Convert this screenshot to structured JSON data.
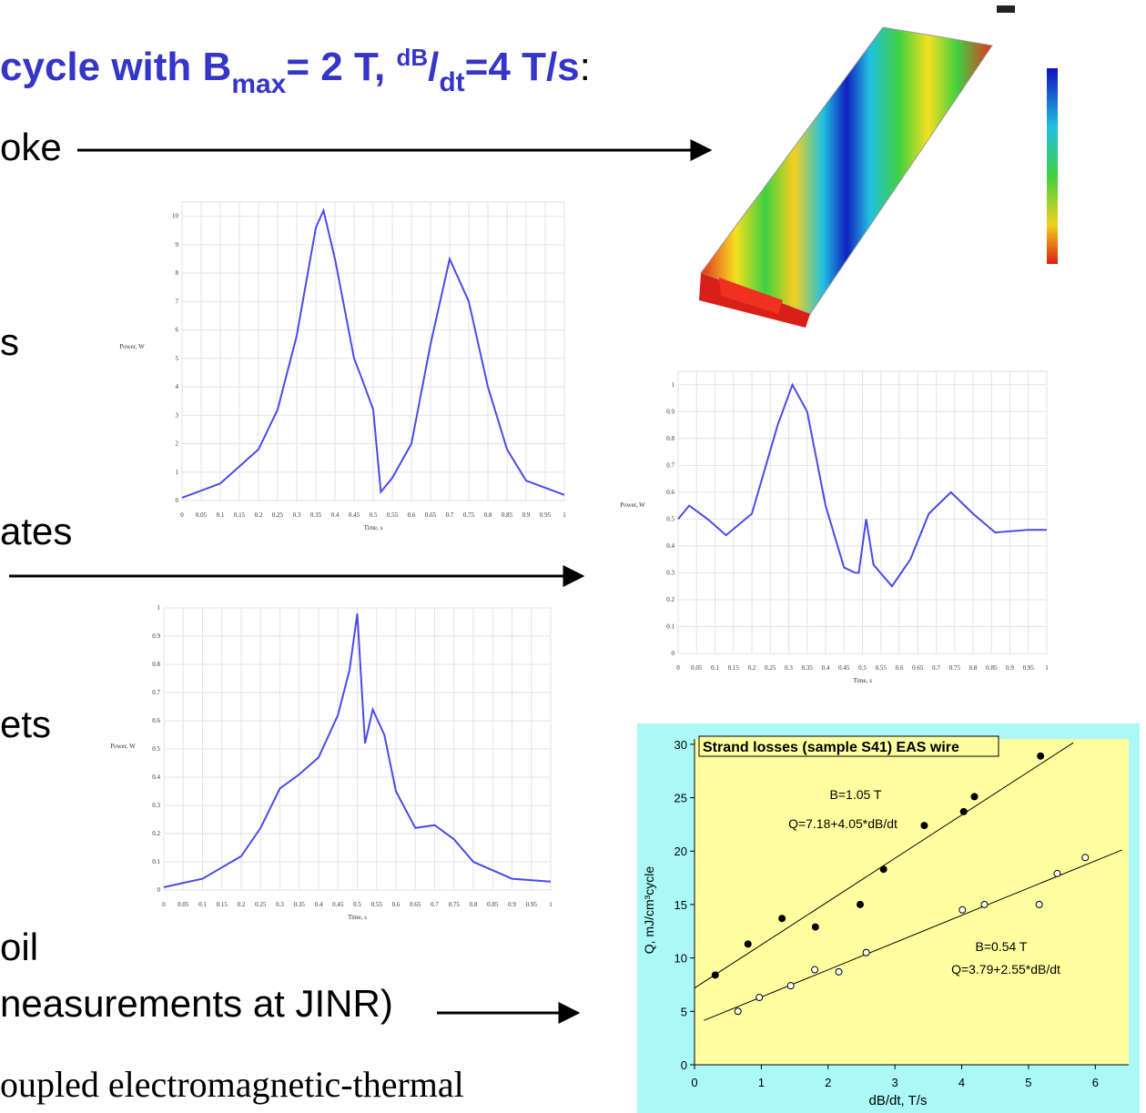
{
  "slide": {
    "title": {
      "main": "cycle with B",
      "sub1": "max",
      "mid": "= 2 T, ",
      "sup": "dB",
      "slash": "/",
      "sub2": "dt",
      "end": "=4 T/s",
      "colon": ":"
    },
    "bullets": [
      "oke",
      "s",
      "ates",
      "ets",
      "oil",
      "neasurements at JINR)"
    ],
    "footer": "oupled electromagnetic-thermal"
  },
  "chart_data": [
    {
      "type": "line",
      "y_label": "Power, W",
      "x_label": "Time, s",
      "color": "#4a4ae8",
      "grid": true,
      "x": [
        0,
        0.1,
        0.2,
        0.25,
        0.3,
        0.35,
        0.37,
        0.4,
        0.45,
        0.47,
        0.5,
        0.52,
        0.55,
        0.6,
        0.65,
        0.7,
        0.75,
        0.8,
        0.85,
        0.9,
        1.0
      ],
      "values": [
        0.1,
        0.6,
        1.8,
        3.2,
        5.8,
        9.6,
        10.2,
        8.5,
        5,
        4.3,
        3.2,
        0.3,
        0.8,
        2,
        5.5,
        8.5,
        7,
        4,
        1.8,
        0.7,
        0.2
      ],
      "xlim": [
        0,
        1
      ],
      "ylim": [
        0,
        10.5
      ],
      "xticks": [
        0,
        0.05,
        0.1,
        0.15,
        0.2,
        0.25,
        0.3,
        0.35,
        0.4,
        0.45,
        0.5,
        0.55,
        0.6,
        0.65,
        0.7,
        0.75,
        0.8,
        0.85,
        0.9,
        0.95,
        1
      ],
      "yticks": [
        0,
        1,
        2,
        3,
        4,
        5,
        6,
        7,
        8,
        9,
        10
      ]
    },
    {
      "type": "line",
      "y_label": "Power, W",
      "x_label": "Time, s",
      "color": "#4a4ae8",
      "grid": true,
      "x": [
        0,
        0.03,
        0.08,
        0.13,
        0.2,
        0.27,
        0.31,
        0.35,
        0.4,
        0.45,
        0.48,
        0.49,
        0.51,
        0.53,
        0.58,
        0.63,
        0.68,
        0.74,
        0.8,
        0.86,
        0.95,
        1.0
      ],
      "values": [
        0.5,
        0.55,
        0.5,
        0.44,
        0.52,
        0.85,
        1.0,
        0.9,
        0.55,
        0.32,
        0.3,
        0.3,
        0.5,
        0.33,
        0.25,
        0.35,
        0.52,
        0.6,
        0.52,
        0.45,
        0.46,
        0.46
      ],
      "xlim": [
        0,
        1
      ],
      "ylim": [
        0,
        1.05
      ],
      "xticks": [
        0,
        0.05,
        0.1,
        0.15,
        0.2,
        0.25,
        0.3,
        0.35,
        0.4,
        0.45,
        0.5,
        0.55,
        0.6,
        0.65,
        0.7,
        0.75,
        0.8,
        0.85,
        0.9,
        0.95,
        1
      ],
      "yticks": [
        0,
        0.1,
        0.2,
        0.3,
        0.4,
        0.5,
        0.6,
        0.7,
        0.8,
        0.9,
        1
      ]
    },
    {
      "type": "line",
      "y_label": "Power, W",
      "x_label": "Time, s",
      "color": "#4a4ae8",
      "grid": true,
      "x": [
        0,
        0.1,
        0.2,
        0.25,
        0.3,
        0.35,
        0.4,
        0.45,
        0.48,
        0.5,
        0.52,
        0.54,
        0.57,
        0.6,
        0.65,
        0.7,
        0.75,
        0.8,
        0.9,
        1.0
      ],
      "values": [
        0.01,
        0.04,
        0.12,
        0.22,
        0.36,
        0.41,
        0.47,
        0.62,
        0.78,
        0.98,
        0.52,
        0.64,
        0.55,
        0.35,
        0.22,
        0.23,
        0.18,
        0.1,
        0.04,
        0.03
      ],
      "xlim": [
        0,
        1
      ],
      "ylim": [
        0,
        1
      ],
      "xticks": [
        0,
        0.05,
        0.1,
        0.15,
        0.2,
        0.25,
        0.3,
        0.35,
        0.4,
        0.45,
        0.5,
        0.55,
        0.6,
        0.65,
        0.7,
        0.75,
        0.8,
        0.85,
        0.9,
        0.95,
        1
      ],
      "yticks": [
        0,
        0.1,
        0.2,
        0.3,
        0.4,
        0.5,
        0.6,
        0.7,
        0.8,
        0.9,
        1
      ]
    },
    {
      "type": "scatter",
      "title": "Strand losses (sample S41) EAS wire",
      "x_label": "dB/dt, T/s",
      "y_label": "Q, mJ/cm³cycle",
      "xlim": [
        0,
        6.5
      ],
      "ylim": [
        0,
        30.5
      ],
      "xticks": [
        0,
        1,
        2,
        3,
        4,
        5,
        6
      ],
      "yticks": [
        0,
        5,
        10,
        15,
        20,
        25,
        30
      ],
      "series": [
        {
          "name": "B=1.05 T",
          "marker": "filled",
          "color": "#000000",
          "x": [
            0.31,
            0.8,
            1.31,
            1.81,
            2.48,
            2.83,
            3.44,
            4.03,
            4.19,
            5.18
          ],
          "values": [
            8.4,
            11.3,
            13.7,
            12.9,
            15.0,
            18.3,
            22.4,
            23.7,
            25.1,
            28.9
          ],
          "fit": {
            "label": "Q=7.18+4.05*dB/dt",
            "intercept": 7.18,
            "slope": 4.05,
            "x_range": [
              0,
              5.67
            ]
          }
        },
        {
          "name": "B=0.54 T",
          "marker": "open",
          "color": "#000000",
          "x": [
            0.65,
            0.97,
            1.44,
            1.8,
            2.16,
            2.57,
            4.01,
            4.34,
            5.16,
            5.43,
            5.85
          ],
          "values": [
            5.0,
            6.3,
            7.4,
            8.9,
            8.7,
            10.5,
            14.5,
            15.0,
            15.0,
            17.9,
            19.4
          ],
          "fit": {
            "label": "Q=3.79+2.55*dB/dt",
            "intercept": 3.79,
            "slope": 2.55,
            "x_range": [
              0.14,
              6.4
            ]
          }
        }
      ]
    }
  ]
}
